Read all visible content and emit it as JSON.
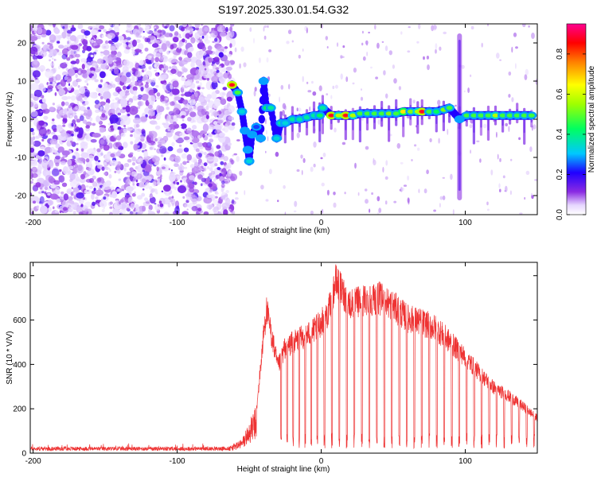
{
  "figure": {
    "title": "S197.2025.330.01.54.G32"
  },
  "chart_data": [
    {
      "type": "heatmap",
      "name": "spectrogram",
      "title": "S197.2025.330.01.54.G32",
      "xlabel": "Height of straight line (km)",
      "ylabel": "Frequency (Hz)",
      "xlim": [
        -202,
        150
      ],
      "ylim": [
        -25,
        25
      ],
      "xticks": [
        -200,
        -100,
        0,
        100
      ],
      "xtick_labels": [
        "-200",
        "-100",
        "0",
        "100"
      ],
      "yticks": [
        -20,
        -10,
        0,
        10,
        20
      ],
      "ytick_labels": [
        "-20",
        "-10",
        "0",
        "10",
        "20"
      ],
      "colorbar": {
        "label": "Normalized spectral amplitude",
        "range": [
          0.0,
          0.95
        ],
        "ticks": [
          0.0,
          0.2,
          0.4,
          0.6,
          0.8
        ],
        "tick_labels": [
          "0.0",
          "0.2",
          "0.4",
          "0.6",
          "0.8"
        ]
      },
      "noise_region": {
        "x_range": [
          -202,
          -63
        ],
        "freq_range": [
          -25,
          25
        ],
        "amplitude": 0.1
      },
      "signal_track": [
        [
          -62,
          9,
          0.85
        ],
        [
          -58,
          7,
          0.5
        ],
        [
          -55,
          2,
          0.35
        ],
        [
          -53,
          -3,
          0.3
        ],
        [
          -51,
          -8,
          0.3
        ],
        [
          -50,
          -11,
          0.35
        ],
        [
          -48,
          -4,
          0.3
        ],
        [
          -45,
          -2,
          0.25
        ],
        [
          -42,
          -5,
          0.3
        ],
        [
          -40,
          10,
          0.3
        ],
        [
          -38,
          3,
          0.45
        ],
        [
          -35,
          3,
          0.4
        ],
        [
          -31,
          -5,
          0.35
        ],
        [
          -28,
          -1,
          0.4
        ],
        [
          -25,
          -1,
          0.35
        ],
        [
          -20,
          0,
          0.4
        ],
        [
          -15,
          0,
          0.4
        ],
        [
          -10,
          0.5,
          0.4
        ],
        [
          -5,
          1,
          0.4
        ],
        [
          -1,
          1,
          0.45
        ],
        [
          1,
          3,
          0.4
        ],
        [
          7,
          1,
          0.85
        ],
        [
          12,
          1,
          0.6
        ],
        [
          17,
          1,
          0.85
        ],
        [
          22,
          1,
          0.6
        ],
        [
          27,
          1.5,
          0.5
        ],
        [
          32,
          1.5,
          0.5
        ],
        [
          37,
          1.5,
          0.5
        ],
        [
          42,
          1.5,
          0.5
        ],
        [
          47,
          1.5,
          0.55
        ],
        [
          52,
          1.5,
          0.5
        ],
        [
          57,
          2,
          0.7
        ],
        [
          62,
          2,
          0.55
        ],
        [
          67,
          2,
          0.6
        ],
        [
          70,
          2,
          0.85
        ],
        [
          75,
          2,
          0.5
        ],
        [
          80,
          2,
          0.45
        ],
        [
          85,
          2.5,
          0.55
        ],
        [
          89,
          3,
          0.5
        ],
        [
          96,
          0,
          0.3
        ],
        [
          101,
          1,
          0.5
        ],
        [
          106,
          1,
          0.5
        ],
        [
          111,
          1,
          0.5
        ],
        [
          116,
          1,
          0.5
        ],
        [
          121,
          1,
          0.6
        ],
        [
          126,
          1,
          0.5
        ],
        [
          131,
          1,
          0.5
        ],
        [
          136,
          1,
          0.5
        ],
        [
          141,
          1,
          0.5
        ],
        [
          146,
          1,
          0.5
        ]
      ]
    },
    {
      "type": "line",
      "name": "snr",
      "xlabel": "Height of straight line (km)",
      "ylabel": "SNR (10 * V/V)",
      "xlim": [
        -202,
        150
      ],
      "ylim": [
        0,
        860
      ],
      "xticks": [
        -200,
        -100,
        0,
        100
      ],
      "xtick_labels": [
        "-200",
        "-100",
        "0",
        "100"
      ],
      "yticks": [
        0,
        200,
        400,
        600,
        800
      ],
      "ytick_labels": [
        "0",
        "200",
        "400",
        "600",
        "800"
      ],
      "color": "#ee3333",
      "noise_floor": 20,
      "gap_level": 70,
      "envelope": [
        [
          -202,
          25
        ],
        [
          -65,
          25
        ],
        [
          -55,
          60
        ],
        [
          -45,
          200
        ],
        [
          -40,
          580
        ],
        [
          -38,
          700
        ],
        [
          -30,
          420
        ],
        [
          -25,
          520
        ],
        [
          -15,
          560
        ],
        [
          -5,
          600
        ],
        [
          0,
          640
        ],
        [
          5,
          690
        ],
        [
          10,
          840
        ],
        [
          20,
          730
        ],
        [
          30,
          750
        ],
        [
          40,
          760
        ],
        [
          50,
          720
        ],
        [
          60,
          660
        ],
        [
          70,
          640
        ],
        [
          80,
          610
        ],
        [
          90,
          540
        ],
        [
          100,
          470
        ],
        [
          110,
          390
        ],
        [
          120,
          320
        ],
        [
          130,
          280
        ],
        [
          140,
          230
        ],
        [
          150,
          170
        ]
      ]
    }
  ]
}
